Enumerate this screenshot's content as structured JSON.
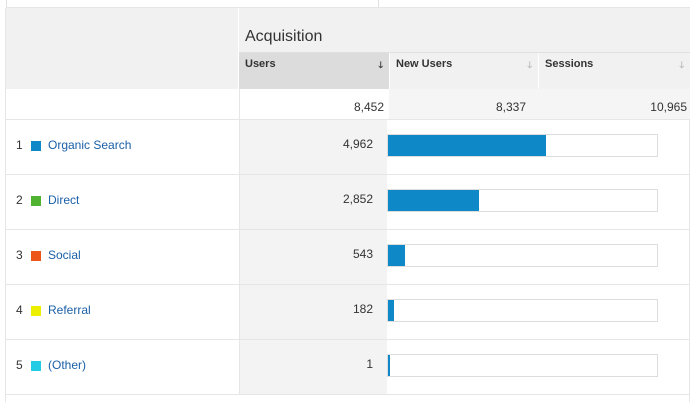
{
  "header": {
    "group_title": "Acquisition",
    "columns": [
      {
        "label": "Users",
        "sorted": true,
        "sort_icon": "arrow-down"
      },
      {
        "label": "New Users",
        "sorted": false,
        "sort_icon": "arrow-down"
      },
      {
        "label": "Sessions",
        "sorted": false,
        "sort_icon": "arrow-down"
      }
    ]
  },
  "totals": {
    "users": "8,452",
    "new_users": "8,337",
    "sessions": "10,965"
  },
  "rows": [
    {
      "index": "1",
      "label": "Organic Search",
      "color": "#0f88c8",
      "users": "4,962",
      "share": 0.587
    },
    {
      "index": "2",
      "label": "Direct",
      "color": "#50b432",
      "users": "2,852",
      "share": 0.337
    },
    {
      "index": "3",
      "label": "Social",
      "color": "#ed561b",
      "users": "543",
      "share": 0.064
    },
    {
      "index": "4",
      "label": "Referral",
      "color": "#edef00",
      "users": "182",
      "share": 0.022
    },
    {
      "index": "5",
      "label": "(Other)",
      "color": "#24cbe5",
      "users": "1",
      "share": 0.001
    }
  ],
  "colors": {
    "bar": "#0f88c8",
    "link": "#1a5fa8"
  }
}
